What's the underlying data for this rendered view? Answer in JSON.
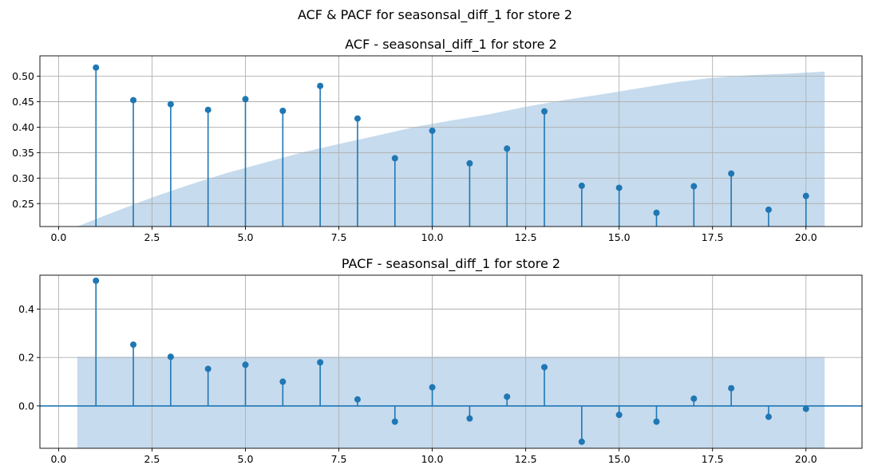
{
  "suptitle": "ACF & PACF for seasonsal_diff_1 for store 2",
  "colors": {
    "stem": "#1f77b4",
    "confidence_band": "#c6dbed",
    "grid": "#b0b0b0",
    "axes": "#000000"
  },
  "chart_data": [
    {
      "type": "stem",
      "title": "ACF - seasonsal_diff_1 for store 2",
      "xlabel": "",
      "ylabel": "",
      "xlim": [
        -0.5,
        21.5
      ],
      "ylim": [
        0.205,
        0.54
      ],
      "grid": true,
      "xticks": [
        0.0,
        2.5,
        5.0,
        7.5,
        10.0,
        12.5,
        15.0,
        17.5,
        20.0
      ],
      "xtick_labels": [
        "0.0",
        "2.5",
        "5.0",
        "7.5",
        "10.0",
        "12.5",
        "15.0",
        "17.5",
        "20.0"
      ],
      "yticks": [
        0.25,
        0.3,
        0.35,
        0.4,
        0.45,
        0.5
      ],
      "ytick_labels": [
        "0.25",
        "0.30",
        "0.35",
        "0.40",
        "0.45",
        "0.50"
      ],
      "lags": [
        1,
        2,
        3,
        4,
        5,
        6,
        7,
        8,
        9,
        10,
        11,
        12,
        13,
        14,
        15,
        16,
        17,
        18,
        19,
        20
      ],
      "values": [
        0.517,
        0.453,
        0.445,
        0.434,
        0.455,
        0.432,
        0.481,
        0.417,
        0.339,
        0.393,
        0.329,
        0.358,
        0.431,
        0.285,
        0.281,
        0.232,
        0.284,
        0.309,
        0.238,
        0.265
      ],
      "confidence_band": {
        "x": [
          0.5,
          1.5,
          2.5,
          3.5,
          4.5,
          5.5,
          6.5,
          7.5,
          8.5,
          9.5,
          10.5,
          11.5,
          12.5,
          13.5,
          14.5,
          15.5,
          16.5,
          17.5,
          18.5,
          19.5,
          20.5
        ],
        "upper": [
          0.205,
          0.234,
          0.262,
          0.287,
          0.31,
          0.33,
          0.35,
          0.367,
          0.383,
          0.4,
          0.413,
          0.425,
          0.44,
          0.453,
          0.464,
          0.476,
          0.488,
          0.497,
          0.502,
          0.505,
          0.509
        ]
      }
    },
    {
      "type": "stem",
      "title": "PACF - seasonsal_diff_1 for store 2",
      "xlabel": "",
      "ylabel": "",
      "xlim": [
        -0.5,
        21.5
      ],
      "ylim": [
        -0.175,
        0.54
      ],
      "grid": true,
      "xticks": [
        0.0,
        2.5,
        5.0,
        7.5,
        10.0,
        12.5,
        15.0,
        17.5,
        20.0
      ],
      "xtick_labels": [
        "0.0",
        "2.5",
        "5.0",
        "7.5",
        "10.0",
        "12.5",
        "15.0",
        "17.5",
        "20.0"
      ],
      "yticks": [
        0.0,
        0.2,
        0.4
      ],
      "ytick_labels": [
        "0.0",
        "0.2",
        "0.4"
      ],
      "lags": [
        1,
        2,
        3,
        4,
        5,
        6,
        7,
        8,
        9,
        10,
        11,
        12,
        13,
        14,
        15,
        16,
        17,
        18,
        19,
        20
      ],
      "values": [
        0.517,
        0.253,
        0.203,
        0.153,
        0.17,
        0.1,
        0.18,
        0.027,
        -0.065,
        0.077,
        -0.052,
        0.038,
        0.16,
        -0.148,
        -0.037,
        -0.065,
        0.03,
        0.073,
        -0.045,
        -0.012
      ],
      "zero_line": 0,
      "confidence_band": {
        "x": [
          0.5,
          20.5
        ],
        "upper": [
          0.203,
          0.203
        ],
        "lower": [
          -0.175,
          -0.175
        ]
      }
    }
  ]
}
